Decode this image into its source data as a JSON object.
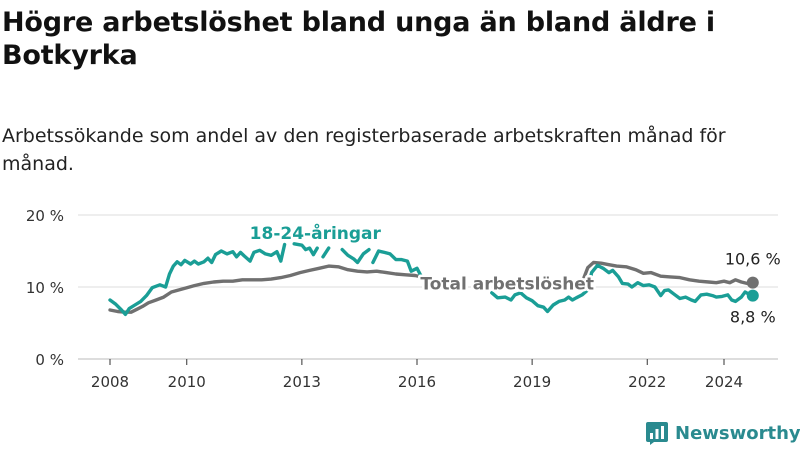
{
  "title": "Högre arbetslöshet bland unga än bland äldre i Botkyrka",
  "subtitle": "Arbetssökande som andel av den registerbaserade arbetskraften månad för månad.",
  "brand": {
    "name": "Newsworthy",
    "color": "#2a8a8f",
    "icon": "newsworthy-logo-icon"
  },
  "chart_data": {
    "type": "line",
    "x_unit": "year",
    "ylim": [
      0,
      20
    ],
    "xlim": [
      2007.5,
      2025.2
    ],
    "y_ticks": [
      {
        "value": 0,
        "label": "0 %"
      },
      {
        "value": 10,
        "label": "10 %"
      },
      {
        "value": 20,
        "label": "20 %"
      }
    ],
    "x_ticks": [
      "2008",
      "2010",
      "2013",
      "2016",
      "2019",
      "2022",
      "2024"
    ],
    "x_tick_values": [
      2008,
      2010,
      2013,
      2016,
      2019,
      2022,
      2024
    ],
    "grid": "horizontal",
    "colors": {
      "youth": "#1a9e96",
      "total": "#707070",
      "grid": "#dddddd"
    },
    "series": [
      {
        "name": "18-24-åringar",
        "key": "youth",
        "color": "#1a9e96",
        "end_label": "8,8 %",
        "segments": [
          [
            [
              2008.0,
              8.2
            ],
            [
              2008.15,
              7.6
            ],
            [
              2008.3,
              6.8
            ],
            [
              2008.4,
              6.2
            ],
            [
              2008.5,
              7.0
            ],
            [
              2008.65,
              7.5
            ],
            [
              2008.8,
              8.0
            ],
            [
              2008.95,
              8.8
            ],
            [
              2009.1,
              9.9
            ],
            [
              2009.3,
              10.3
            ],
            [
              2009.45,
              10.0
            ],
            [
              2009.55,
              11.8
            ],
            [
              2009.65,
              12.9
            ],
            [
              2009.75,
              13.5
            ],
            [
              2009.85,
              13.1
            ],
            [
              2009.95,
              13.7
            ],
            [
              2010.1,
              13.2
            ],
            [
              2010.2,
              13.6
            ],
            [
              2010.3,
              13.2
            ],
            [
              2010.45,
              13.5
            ],
            [
              2010.55,
              14.0
            ],
            [
              2010.65,
              13.4
            ],
            [
              2010.75,
              14.5
            ],
            [
              2010.9,
              15.0
            ],
            [
              2011.05,
              14.6
            ],
            [
              2011.2,
              14.9
            ],
            [
              2011.3,
              14.2
            ],
            [
              2011.4,
              14.8
            ],
            [
              2011.5,
              14.3
            ],
            [
              2011.65,
              13.6
            ],
            [
              2011.75,
              14.8
            ],
            [
              2011.9,
              15.1
            ],
            [
              2012.05,
              14.6
            ],
            [
              2012.2,
              14.4
            ],
            [
              2012.35,
              14.9
            ],
            [
              2012.45,
              13.6
            ],
            [
              2012.55,
              15.9
            ]
          ],
          [
            [
              2012.8,
              16.0
            ],
            [
              2013.0,
              15.8
            ],
            [
              2013.1,
              15.2
            ],
            [
              2013.2,
              15.4
            ],
            [
              2013.3,
              14.5
            ],
            [
              2013.4,
              15.4
            ]
          ],
          [
            [
              2013.55,
              14.2
            ],
            [
              2013.7,
              15.4
            ]
          ],
          [
            [
              2014.05,
              15.2
            ],
            [
              2014.2,
              14.4
            ],
            [
              2014.35,
              13.9
            ],
            [
              2014.45,
              13.4
            ],
            [
              2014.6,
              14.6
            ],
            [
              2014.75,
              15.2
            ]
          ],
          [
            [
              2014.85,
              13.4
            ],
            [
              2015.0,
              15.0
            ],
            [
              2015.15,
              14.8
            ],
            [
              2015.3,
              14.6
            ],
            [
              2015.45,
              13.8
            ],
            [
              2015.6,
              13.8
            ],
            [
              2015.75,
              13.6
            ],
            [
              2015.85,
              12.2
            ],
            [
              2016.0,
              12.6
            ],
            [
              2016.1,
              11.6
            ],
            [
              2016.25,
              11.2
            ],
            [
              2016.35,
              10.8
            ]
          ],
          [
            [
              2017.95,
              9.2
            ],
            [
              2018.1,
              8.5
            ],
            [
              2018.3,
              8.6
            ],
            [
              2018.45,
              8.2
            ],
            [
              2018.55,
              8.9
            ],
            [
              2018.7,
              9.2
            ],
            [
              2018.85,
              8.5
            ],
            [
              2019.0,
              8.1
            ],
            [
              2019.15,
              7.4
            ],
            [
              2019.3,
              7.2
            ],
            [
              2019.4,
              6.6
            ],
            [
              2019.55,
              7.5
            ],
            [
              2019.7,
              8.0
            ],
            [
              2019.85,
              8.2
            ],
            [
              2019.95,
              8.6
            ],
            [
              2020.05,
              8.2
            ],
            [
              2020.15,
              8.5
            ],
            [
              2020.3,
              8.9
            ],
            [
              2020.45,
              9.6
            ],
            [
              2020.55,
              12.0
            ],
            [
              2020.7,
              13.0
            ],
            [
              2020.85,
              12.6
            ],
            [
              2021.0,
              12.0
            ],
            [
              2021.1,
              12.3
            ],
            [
              2021.25,
              11.4
            ],
            [
              2021.35,
              10.5
            ],
            [
              2021.5,
              10.4
            ],
            [
              2021.6,
              10.0
            ],
            [
              2021.75,
              10.6
            ],
            [
              2021.9,
              10.2
            ],
            [
              2022.05,
              10.3
            ],
            [
              2022.2,
              10.0
            ],
            [
              2022.35,
              8.8
            ],
            [
              2022.45,
              9.5
            ],
            [
              2022.55,
              9.6
            ],
            [
              2022.7,
              9.0
            ],
            [
              2022.85,
              8.4
            ],
            [
              2023.0,
              8.6
            ],
            [
              2023.15,
              8.2
            ],
            [
              2023.25,
              8.0
            ],
            [
              2023.4,
              8.9
            ],
            [
              2023.55,
              9.0
            ],
            [
              2023.7,
              8.8
            ],
            [
              2023.8,
              8.6
            ],
            [
              2023.95,
              8.7
            ],
            [
              2024.1,
              8.9
            ],
            [
              2024.2,
              8.2
            ],
            [
              2024.3,
              8.0
            ],
            [
              2024.45,
              8.6
            ],
            [
              2024.55,
              9.3
            ],
            [
              2024.65,
              9.0
            ],
            [
              2024.75,
              8.8
            ]
          ]
        ]
      },
      {
        "name": "Total arbetslöshet",
        "key": "total",
        "color": "#707070",
        "end_label": "10,6 %",
        "segments": [
          [
            [
              2008.0,
              6.8
            ],
            [
              2008.2,
              6.6
            ],
            [
              2008.4,
              6.5
            ],
            [
              2008.55,
              6.5
            ],
            [
              2008.7,
              6.9
            ],
            [
              2008.85,
              7.3
            ],
            [
              2009.0,
              7.8
            ],
            [
              2009.2,
              8.2
            ],
            [
              2009.4,
              8.6
            ],
            [
              2009.6,
              9.3
            ],
            [
              2009.8,
              9.6
            ],
            [
              2010.0,
              9.9
            ],
            [
              2010.2,
              10.2
            ],
            [
              2010.45,
              10.5
            ],
            [
              2010.7,
              10.7
            ],
            [
              2010.95,
              10.8
            ],
            [
              2011.2,
              10.8
            ],
            [
              2011.45,
              11.0
            ],
            [
              2011.7,
              11.0
            ],
            [
              2011.95,
              11.0
            ],
            [
              2012.2,
              11.1
            ],
            [
              2012.45,
              11.3
            ],
            [
              2012.7,
              11.6
            ],
            [
              2012.95,
              12.0
            ],
            [
              2013.2,
              12.3
            ],
            [
              2013.45,
              12.6
            ],
            [
              2013.7,
              12.9
            ],
            [
              2013.95,
              12.8
            ],
            [
              2014.2,
              12.4
            ],
            [
              2014.45,
              12.2
            ],
            [
              2014.7,
              12.1
            ],
            [
              2014.95,
              12.2
            ],
            [
              2015.2,
              12.0
            ],
            [
              2015.45,
              11.8
            ],
            [
              2015.7,
              11.7
            ],
            [
              2015.95,
              11.6
            ],
            [
              2016.2,
              11.3
            ],
            [
              2016.35,
              11.0
            ]
          ],
          [
            [
              2020.3,
              10.6
            ],
            [
              2020.45,
              12.7
            ],
            [
              2020.6,
              13.4
            ],
            [
              2020.8,
              13.3
            ],
            [
              2021.0,
              13.1
            ],
            [
              2021.2,
              12.9
            ],
            [
              2021.45,
              12.8
            ],
            [
              2021.7,
              12.4
            ],
            [
              2021.9,
              11.9
            ],
            [
              2022.1,
              12.0
            ],
            [
              2022.35,
              11.5
            ],
            [
              2022.6,
              11.4
            ],
            [
              2022.85,
              11.3
            ],
            [
              2023.1,
              11.0
            ],
            [
              2023.35,
              10.8
            ],
            [
              2023.6,
              10.7
            ],
            [
              2023.8,
              10.6
            ],
            [
              2024.0,
              10.8
            ],
            [
              2024.15,
              10.6
            ],
            [
              2024.3,
              11.0
            ],
            [
              2024.45,
              10.7
            ],
            [
              2024.6,
              10.5
            ],
            [
              2024.75,
              10.6
            ]
          ]
        ]
      }
    ],
    "annotations": [
      {
        "text": "18-24-åringar",
        "series": "youth",
        "at": [
          2013.35,
          17.5
        ]
      },
      {
        "text": "Total arbetslöshet",
        "series": "total",
        "at": [
          2018.35,
          10.5
        ]
      }
    ]
  }
}
